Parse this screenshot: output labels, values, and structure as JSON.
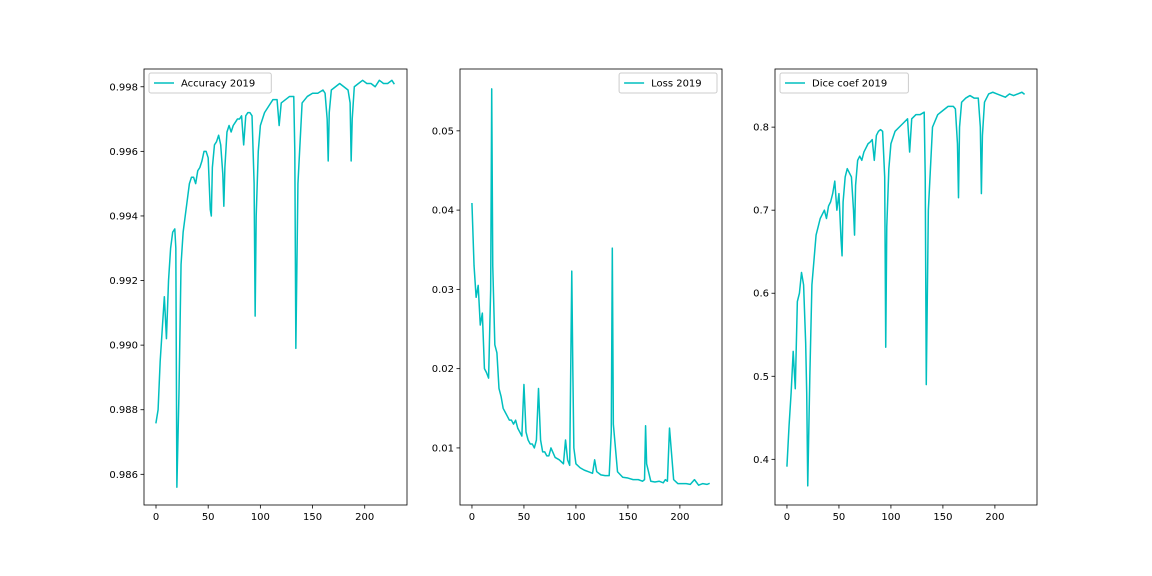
{
  "figure": {
    "background": "#ffffff",
    "line_color": "#00bfbf"
  },
  "chart_data": [
    {
      "type": "line",
      "legend": "Accuracy 2019",
      "legend_position": "upper-left",
      "grid": false,
      "xlim": [
        -11.5,
        240.5
      ],
      "ylim": [
        0.98505,
        0.99855
      ],
      "x_ticks": [
        0,
        50,
        100,
        150,
        200
      ],
      "y_ticks": [
        0.986,
        0.988,
        0.99,
        0.992,
        0.994,
        0.996,
        0.998
      ],
      "y_tick_decimals": 3,
      "series": [
        {
          "name": "Accuracy 2019",
          "x": [
            0,
            2,
            4,
            6,
            8,
            10,
            12,
            14,
            16,
            18,
            19,
            20,
            22,
            24,
            26,
            28,
            30,
            32,
            34,
            36,
            38,
            40,
            42,
            44,
            46,
            48,
            50,
            52,
            53,
            54,
            56,
            58,
            60,
            62,
            64,
            65,
            66,
            68,
            70,
            72,
            74,
            76,
            78,
            80,
            82,
            84,
            86,
            88,
            90,
            92,
            94,
            95,
            96,
            98,
            100,
            104,
            108,
            112,
            116,
            118,
            120,
            124,
            128,
            132,
            133,
            134,
            136,
            140,
            145,
            150,
            155,
            160,
            162,
            164,
            165,
            166,
            168,
            172,
            176,
            180,
            184,
            186,
            187,
            188,
            190,
            194,
            198,
            202,
            206,
            210,
            214,
            218,
            222,
            226,
            228
          ],
          "values": [
            0.9876,
            0.988,
            0.9895,
            0.9905,
            0.9915,
            0.9902,
            0.992,
            0.993,
            0.9935,
            0.9936,
            0.993,
            0.9856,
            0.9885,
            0.9925,
            0.9935,
            0.994,
            0.9945,
            0.995,
            0.9952,
            0.9952,
            0.995,
            0.9954,
            0.9955,
            0.9957,
            0.996,
            0.996,
            0.9958,
            0.9942,
            0.994,
            0.9955,
            0.9962,
            0.9963,
            0.9965,
            0.9962,
            0.9953,
            0.9943,
            0.9955,
            0.9966,
            0.9968,
            0.9966,
            0.9968,
            0.9969,
            0.997,
            0.997,
            0.9971,
            0.9962,
            0.9971,
            0.9972,
            0.9972,
            0.9971,
            0.995,
            0.9909,
            0.994,
            0.996,
            0.9968,
            0.9972,
            0.9974,
            0.9976,
            0.9976,
            0.9968,
            0.9975,
            0.9976,
            0.9977,
            0.9977,
            0.996,
            0.9899,
            0.995,
            0.9975,
            0.9977,
            0.9978,
            0.9978,
            0.9979,
            0.9978,
            0.997,
            0.9957,
            0.9972,
            0.9979,
            0.998,
            0.9981,
            0.998,
            0.9979,
            0.9975,
            0.9957,
            0.997,
            0.998,
            0.9981,
            0.9982,
            0.9981,
            0.9981,
            0.998,
            0.9982,
            0.9981,
            0.9981,
            0.9982,
            0.9981
          ]
        }
      ]
    },
    {
      "type": "line",
      "legend": "Loss 2019",
      "legend_position": "upper-right",
      "grid": false,
      "xlim": [
        -11.5,
        240.5
      ],
      "ylim": [
        0.0028,
        0.0578
      ],
      "x_ticks": [
        0,
        50,
        100,
        150,
        200
      ],
      "y_ticks": [
        0.01,
        0.02,
        0.03,
        0.04,
        0.05
      ],
      "y_tick_decimals": 2,
      "series": [
        {
          "name": "Loss 2019",
          "x": [
            0,
            2,
            4,
            6,
            8,
            10,
            12,
            14,
            16,
            18,
            19,
            20,
            22,
            24,
            26,
            28,
            30,
            32,
            34,
            36,
            38,
            40,
            42,
            44,
            46,
            48,
            50,
            52,
            54,
            56,
            58,
            60,
            62,
            64,
            66,
            68,
            70,
            72,
            74,
            76,
            80,
            84,
            88,
            90,
            92,
            94,
            96,
            97,
            98,
            100,
            104,
            108,
            112,
            116,
            118,
            120,
            124,
            128,
            132,
            134,
            135,
            136,
            140,
            145,
            150,
            155,
            160,
            164,
            166,
            167,
            168,
            172,
            176,
            180,
            184,
            186,
            188,
            190,
            194,
            198,
            202,
            206,
            210,
            214,
            218,
            222,
            226,
            228
          ],
          "values": [
            0.0408,
            0.033,
            0.029,
            0.0305,
            0.0255,
            0.027,
            0.02,
            0.0195,
            0.0188,
            0.03,
            0.0553,
            0.033,
            0.023,
            0.022,
            0.0175,
            0.0165,
            0.015,
            0.0145,
            0.014,
            0.0135,
            0.0135,
            0.013,
            0.0135,
            0.0125,
            0.012,
            0.0115,
            0.018,
            0.012,
            0.011,
            0.0105,
            0.0105,
            0.01,
            0.011,
            0.0175,
            0.011,
            0.0095,
            0.0095,
            0.009,
            0.009,
            0.01,
            0.0088,
            0.0085,
            0.008,
            0.011,
            0.0085,
            0.0078,
            0.0323,
            0.02,
            0.01,
            0.008,
            0.0075,
            0.0072,
            0.007,
            0.0068,
            0.0085,
            0.007,
            0.0066,
            0.0065,
            0.0065,
            0.012,
            0.0352,
            0.013,
            0.007,
            0.0063,
            0.0062,
            0.006,
            0.006,
            0.0058,
            0.006,
            0.0128,
            0.008,
            0.0058,
            0.0057,
            0.0058,
            0.0056,
            0.006,
            0.0058,
            0.0125,
            0.006,
            0.0055,
            0.0055,
            0.0055,
            0.0054,
            0.006,
            0.0053,
            0.0055,
            0.0054,
            0.0055
          ]
        }
      ]
    },
    {
      "type": "line",
      "legend": "Dice coef 2019",
      "legend_position": "upper-left",
      "grid": false,
      "xlim": [
        -11.5,
        240.5
      ],
      "ylim": [
        0.345,
        0.87
      ],
      "x_ticks": [
        0,
        50,
        100,
        150,
        200
      ],
      "y_ticks": [
        0.4,
        0.5,
        0.6,
        0.7,
        0.8
      ],
      "y_tick_decimals": 1,
      "series": [
        {
          "name": "Dice coef 2019",
          "x": [
            0,
            2,
            4,
            6,
            8,
            10,
            12,
            14,
            16,
            18,
            19,
            20,
            22,
            24,
            26,
            28,
            30,
            32,
            34,
            36,
            38,
            40,
            42,
            44,
            46,
            48,
            50,
            52,
            53,
            54,
            56,
            58,
            60,
            62,
            64,
            65,
            66,
            68,
            70,
            72,
            74,
            76,
            78,
            80,
            82,
            84,
            86,
            88,
            90,
            92,
            94,
            95,
            96,
            98,
            100,
            104,
            108,
            112,
            116,
            118,
            120,
            124,
            128,
            132,
            133,
            134,
            136,
            140,
            145,
            150,
            155,
            160,
            162,
            164,
            165,
            166,
            168,
            172,
            176,
            180,
            184,
            186,
            187,
            188,
            190,
            194,
            198,
            202,
            206,
            210,
            214,
            218,
            222,
            226,
            228
          ],
          "values": [
            0.392,
            0.44,
            0.48,
            0.53,
            0.485,
            0.59,
            0.6,
            0.625,
            0.61,
            0.54,
            0.48,
            0.368,
            0.5,
            0.61,
            0.64,
            0.67,
            0.68,
            0.69,
            0.695,
            0.7,
            0.69,
            0.705,
            0.71,
            0.72,
            0.735,
            0.7,
            0.72,
            0.665,
            0.645,
            0.71,
            0.74,
            0.75,
            0.745,
            0.74,
            0.7,
            0.67,
            0.73,
            0.76,
            0.765,
            0.76,
            0.77,
            0.775,
            0.78,
            0.782,
            0.785,
            0.76,
            0.79,
            0.795,
            0.797,
            0.795,
            0.74,
            0.535,
            0.68,
            0.75,
            0.78,
            0.795,
            0.8,
            0.805,
            0.81,
            0.77,
            0.81,
            0.815,
            0.815,
            0.818,
            0.74,
            0.49,
            0.7,
            0.8,
            0.815,
            0.82,
            0.825,
            0.825,
            0.822,
            0.78,
            0.715,
            0.8,
            0.83,
            0.835,
            0.838,
            0.835,
            0.835,
            0.8,
            0.72,
            0.79,
            0.83,
            0.84,
            0.842,
            0.84,
            0.838,
            0.836,
            0.84,
            0.838,
            0.84,
            0.842,
            0.84
          ]
        }
      ]
    }
  ]
}
